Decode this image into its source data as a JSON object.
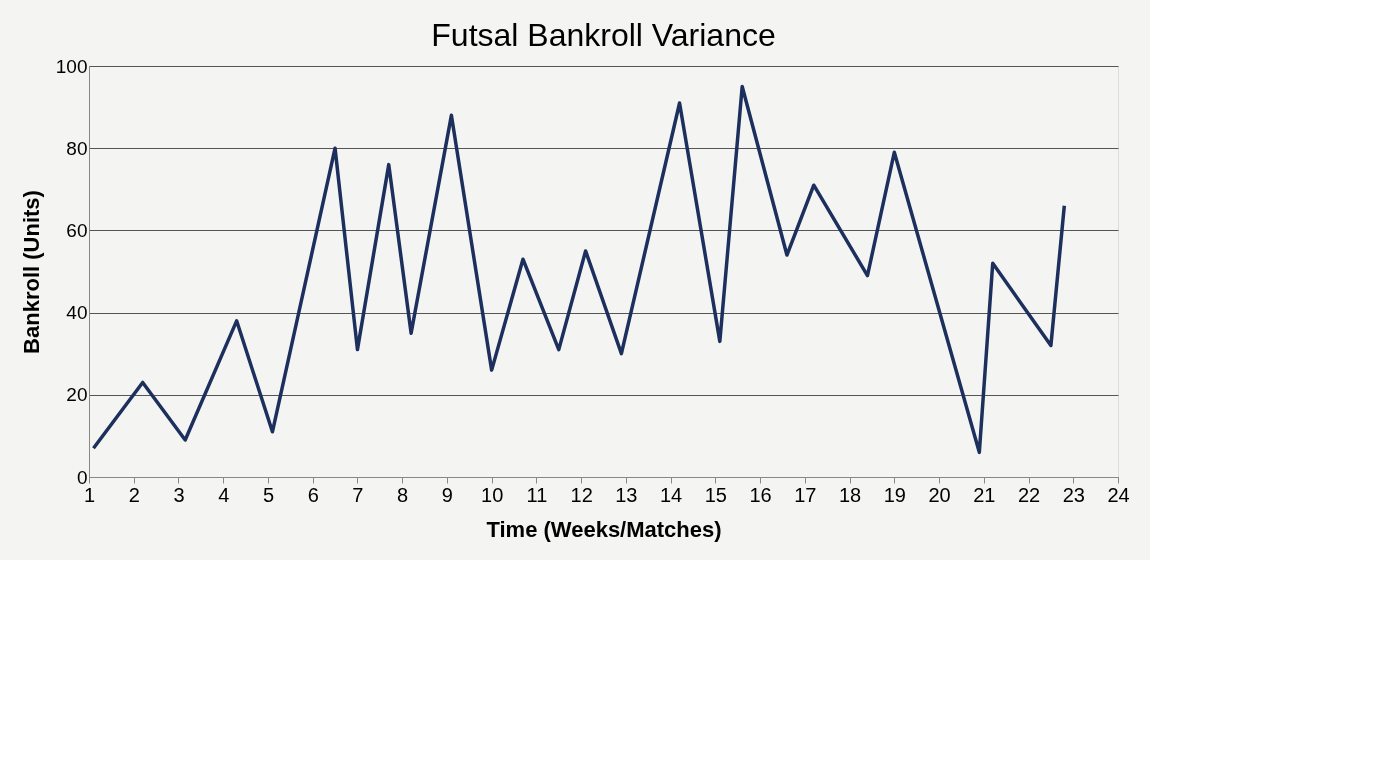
{
  "chart_data": {
    "type": "line",
    "title": "Futsal Bankroll Variance",
    "xlabel": "Time (Weeks/Matches)",
    "ylabel": "Bankroll (Units)",
    "x": [
      1.1,
      2.2,
      3.15,
      4.3,
      5.1,
      6.5,
      7.0,
      7.7,
      8.2,
      9.1,
      10.0,
      10.7,
      11.5,
      12.1,
      12.9,
      14.2,
      15.1,
      15.6,
      16.6,
      17.2,
      18.4,
      19.0,
      20.9,
      21.2,
      22.5,
      22.8
    ],
    "series": [
      {
        "color": "#1d2f5c",
        "values": [
          7,
          23,
          9,
          38,
          11,
          80,
          31,
          76,
          35,
          88,
          26,
          53,
          31,
          55,
          30,
          91,
          33,
          95,
          54,
          71,
          49,
          79,
          6,
          52,
          32,
          66
        ]
      }
    ],
    "xlim": [
      1,
      24
    ],
    "ylim": [
      0,
      100
    ],
    "xticks": [
      1,
      2,
      3,
      4,
      5,
      6,
      7,
      8,
      9,
      10,
      11,
      12,
      13,
      14,
      15,
      16,
      17,
      18,
      19,
      20,
      21,
      22,
      23,
      24
    ],
    "yticks": [
      0,
      20,
      40,
      60,
      80,
      100
    ],
    "grid": "y",
    "marker": "none",
    "line_style": "solid",
    "legend": false
  }
}
